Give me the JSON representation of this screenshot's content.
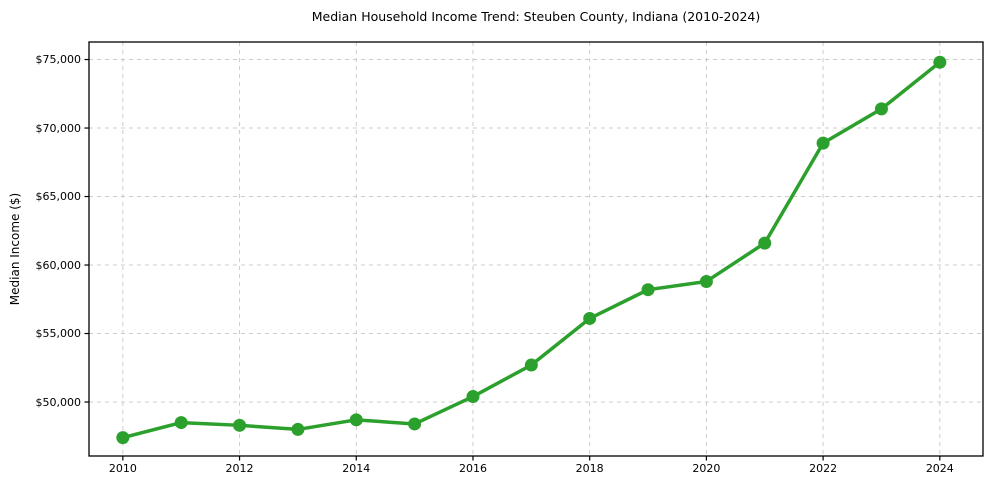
{
  "chart_data": {
    "type": "line",
    "title": "Median Household Income Trend: Steuben County, Indiana (2010-2024)",
    "ylabel": "Median Income ($)",
    "xlabel": "",
    "x": [
      2010,
      2011,
      2012,
      2013,
      2014,
      2015,
      2016,
      2017,
      2018,
      2019,
      2020,
      2021,
      2022,
      2023,
      2024
    ],
    "series": [
      {
        "name": "Median Household Income",
        "values": [
          47400,
          48500,
          48300,
          48000,
          48700,
          48400,
          50400,
          52700,
          56100,
          58200,
          58800,
          61600,
          68900,
          71400,
          74800
        ]
      }
    ],
    "x_ticks": {
      "values": [
        2010,
        2012,
        2014,
        2016,
        2018,
        2020,
        2022,
        2024
      ],
      "labels": [
        "2010",
        "2012",
        "2014",
        "2016",
        "2018",
        "2020",
        "2022",
        "2024"
      ]
    },
    "y_ticks": {
      "values": [
        50000,
        55000,
        60000,
        65000,
        70000,
        75000
      ],
      "labels": [
        "$50,000",
        "$55,000",
        "$60,000",
        "$65,000",
        "$70,000",
        "$75,000"
      ]
    },
    "xlim": [
      2009.42,
      2024.74
    ],
    "ylim": [
      46060,
      76280
    ],
    "grid": true,
    "legend": "none",
    "styles": {
      "line_color": "#2ca02c",
      "marker": "circle",
      "marker_diameter": 13,
      "line_width": 3.5,
      "grid_color": "#cccccc",
      "grid_dash": "4 4",
      "spine_color": "#000000",
      "tick_color": "#000000",
      "text_color": "#000000",
      "background": "#ffffff"
    }
  }
}
